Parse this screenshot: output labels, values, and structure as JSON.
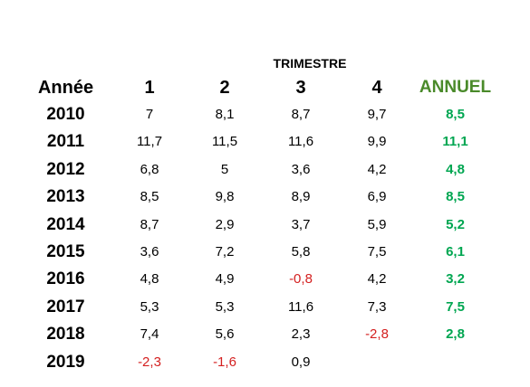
{
  "colors": {
    "text": "#000000",
    "annual": "#00a651",
    "annual_header": "#4a8a2a",
    "negative": "#d42020"
  },
  "table": {
    "supertitle": "TRIMESTRE",
    "headers": {
      "year": "Année",
      "q1": "1",
      "q2": "2",
      "q3": "3",
      "q4": "4",
      "annual": "ANNUEL"
    },
    "rows": [
      {
        "year": "2010",
        "q1": "7",
        "q2": "8,1",
        "q3": "8,7",
        "q4": "9,7",
        "annual": "8,5"
      },
      {
        "year": "2011",
        "q1": "11,7",
        "q2": "11,5",
        "q3": "11,6",
        "q4": "9,9",
        "annual": "11,1"
      },
      {
        "year": "2012",
        "q1": "6,8",
        "q2": "5",
        "q3": "3,6",
        "q4": "4,2",
        "annual": "4,8"
      },
      {
        "year": "2013",
        "q1": "8,5",
        "q2": "9,8",
        "q3": "8,9",
        "q4": "6,9",
        "annual": "8,5"
      },
      {
        "year": "2014",
        "q1": "8,7",
        "q2": "2,9",
        "q3": "3,7",
        "q4": "5,9",
        "annual": "5,2"
      },
      {
        "year": "2015",
        "q1": "3,6",
        "q2": "7,2",
        "q3": "5,8",
        "q4": "7,5",
        "annual": "6,1"
      },
      {
        "year": "2016",
        "q1": "4,8",
        "q2": "4,9",
        "q3": "-0,8",
        "q4": "4,2",
        "annual": "3,2"
      },
      {
        "year": "2017",
        "q1": "5,3",
        "q2": "5,3",
        "q3": "11,6",
        "q4": "7,3",
        "annual": "7,5"
      },
      {
        "year": "2018",
        "q1": "7,4",
        "q2": "5,6",
        "q3": "2,3",
        "q4": "-2,8",
        "annual": "2,8"
      },
      {
        "year": "2019",
        "q1": "-2,3",
        "q2": "-1,6",
        "q3": "0,9",
        "q4": "",
        "annual": ""
      }
    ]
  }
}
